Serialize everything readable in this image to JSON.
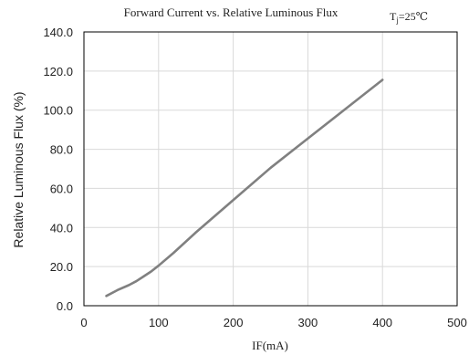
{
  "chart_data": {
    "type": "line",
    "title": "Forward Current vs. Relative Luminous Flux",
    "condition": {
      "main": "T",
      "sub": "j",
      "rest": "=25℃"
    },
    "xlabel": "IF(mA)",
    "ylabel": "Relative Luminous Flux (%)",
    "xlim": [
      0,
      500
    ],
    "ylim": [
      0,
      140
    ],
    "x_ticks": [
      "0",
      "100",
      "200",
      "300",
      "400",
      "500"
    ],
    "y_ticks": [
      "0.0",
      "20.0",
      "40.0",
      "60.0",
      "80.0",
      "100.0",
      "120.0",
      "140.0"
    ],
    "grid": true,
    "series": [
      {
        "color": "#808080",
        "x": [
          30,
          45,
          60,
          70,
          80,
          90,
          100,
          120,
          150,
          200,
          250,
          300,
          350,
          400
        ],
        "y": [
          5,
          8,
          10.5,
          12.5,
          15,
          17.5,
          20.5,
          27,
          37.5,
          54,
          70.5,
          85.5,
          100.5,
          115.5
        ]
      }
    ]
  },
  "colors": {
    "grid": "#d9d9d9",
    "axis_frame": "#000000",
    "series": "#808080"
  }
}
